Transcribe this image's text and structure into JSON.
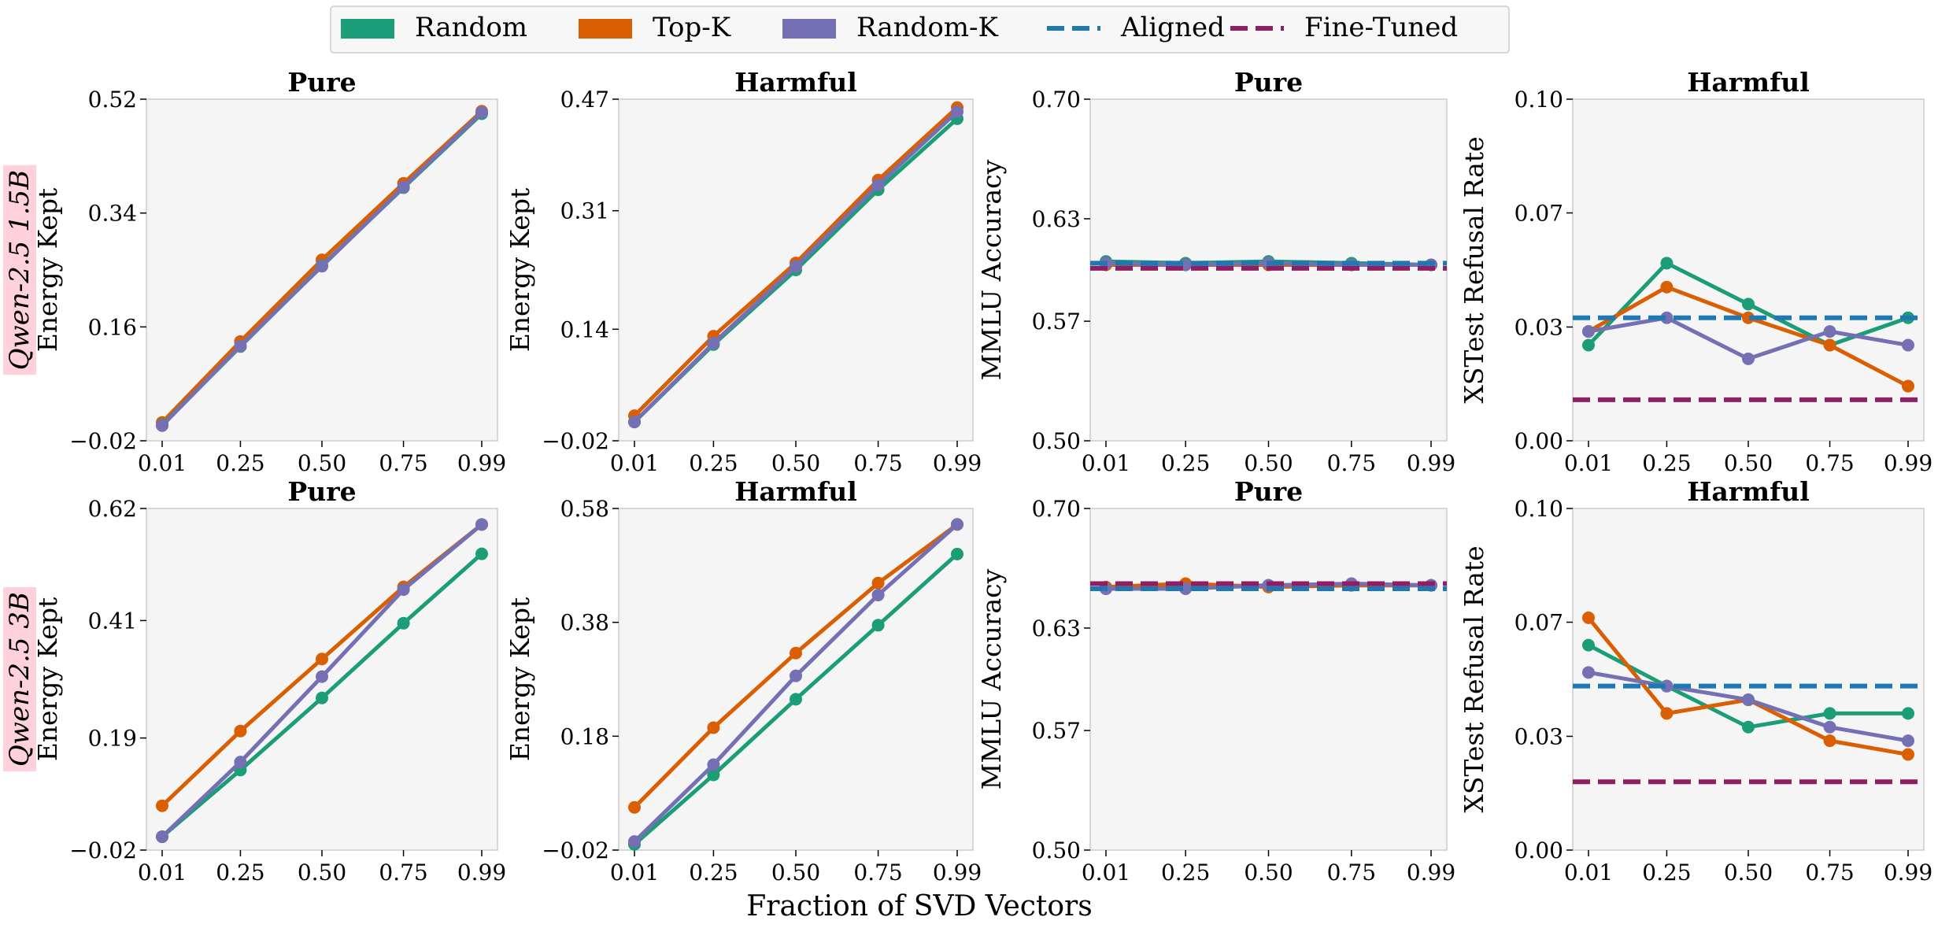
{
  "colors": {
    "random": "#1b9e77",
    "topk": "#d95f02",
    "randomk": "#7570b3",
    "aligned": "#1f77b4",
    "finetuned": "#8e1f63",
    "plot_bg": "#f5f5f5",
    "row_label_bg": "#ffd1dc"
  },
  "legend": [
    {
      "label": "Random",
      "kind": "patch",
      "color_key": "random"
    },
    {
      "label": "Top-K",
      "kind": "patch",
      "color_key": "topk"
    },
    {
      "label": "Random-K",
      "kind": "patch",
      "color_key": "randomk"
    },
    {
      "label": "Aligned",
      "kind": "dashed",
      "color_key": "aligned"
    },
    {
      "label": "Fine-Tuned",
      "kind": "dashed",
      "color_key": "finetuned"
    }
  ],
  "xlabel": "Fraction of SVD Vectors",
  "row_labels": [
    "Qwen-2.5 1.5B",
    "Qwen-2.5 3B"
  ],
  "chart_data": [
    {
      "type": "line",
      "title": "Pure",
      "ylabel": "Energy Kept",
      "x": [
        0.01,
        0.25,
        0.5,
        0.75,
        0.99
      ],
      "xticks": [
        "0.01",
        "0.25",
        "0.50",
        "0.75",
        "0.99"
      ],
      "ylim": [
        -0.02,
        0.52
      ],
      "yticks": [
        "−0.02",
        "0.16",
        "0.34",
        "0.52"
      ],
      "ytick_values": [
        -0.02,
        0.16,
        0.34,
        0.52
      ],
      "series": [
        {
          "name": "Top-K",
          "color_key": "topk",
          "values": [
            0.009,
            0.137,
            0.266,
            0.387,
            0.501
          ]
        },
        {
          "name": "Random",
          "color_key": "random",
          "values": [
            0.005,
            0.129,
            0.257,
            0.38,
            0.497
          ]
        },
        {
          "name": "Random-K",
          "color_key": "randomk",
          "values": [
            0.004,
            0.13,
            0.256,
            0.381,
            0.499
          ]
        }
      ],
      "hlines": []
    },
    {
      "type": "line",
      "title": "Harmful",
      "ylabel": "Energy Kept",
      "x": [
        0.01,
        0.25,
        0.5,
        0.75,
        0.99
      ],
      "xticks": [
        "0.01",
        "0.25",
        "0.50",
        "0.75",
        "0.99"
      ],
      "ylim": [
        -0.02,
        0.47
      ],
      "yticks": [
        "−0.02",
        "0.14",
        "0.31",
        "0.47"
      ],
      "ytick_values": [
        -0.02,
        0.14,
        0.31,
        0.47
      ],
      "series": [
        {
          "name": "Top-K",
          "color_key": "topk",
          "values": [
            0.016,
            0.13,
            0.235,
            0.354,
            0.458
          ]
        },
        {
          "name": "Random",
          "color_key": "random",
          "values": [
            0.007,
            0.118,
            0.225,
            0.34,
            0.442
          ]
        },
        {
          "name": "Random-K",
          "color_key": "randomk",
          "values": [
            0.007,
            0.12,
            0.23,
            0.347,
            0.452
          ]
        }
      ],
      "hlines": []
    },
    {
      "type": "line",
      "title": "Pure",
      "ylabel": "MMLU Accuracy",
      "x": [
        0.01,
        0.25,
        0.5,
        0.75,
        0.99
      ],
      "xticks": [
        "0.01",
        "0.25",
        "0.50",
        "0.75",
        "0.99"
      ],
      "ylim": [
        0.5,
        0.7
      ],
      "yticks": [
        "0.50",
        "0.57",
        "0.63",
        "0.70"
      ],
      "ytick_values": [
        0.5,
        0.57,
        0.63,
        0.7
      ],
      "series": [
        {
          "name": "Random",
          "color_key": "random",
          "values": [
            0.605,
            0.604,
            0.605,
            0.604,
            0.603
          ]
        },
        {
          "name": "Top-K",
          "color_key": "topk",
          "values": [
            0.603,
            0.603,
            0.603,
            0.603,
            0.603
          ]
        },
        {
          "name": "Random-K",
          "color_key": "randomk",
          "values": [
            0.604,
            0.603,
            0.604,
            0.603,
            0.603
          ]
        }
      ],
      "hlines": [
        {
          "name": "Aligned",
          "color_key": "aligned",
          "value": 0.604
        },
        {
          "name": "Fine-Tuned",
          "color_key": "finetuned",
          "value": 0.601
        }
      ]
    },
    {
      "type": "line",
      "title": "Harmful",
      "ylabel": "XSTest Refusal Rate",
      "x": [
        0.01,
        0.25,
        0.5,
        0.75,
        0.99
      ],
      "xticks": [
        "0.01",
        "0.25",
        "0.50",
        "0.75",
        "0.99"
      ],
      "ylim": [
        0.0,
        0.1
      ],
      "yticks": [
        "0.00",
        "0.03",
        "0.07",
        "0.10"
      ],
      "ytick_values": [
        0.0,
        0.0333,
        0.0667,
        0.1
      ],
      "series": [
        {
          "name": "Random",
          "color_key": "random",
          "values": [
            0.028,
            0.052,
            0.04,
            0.028,
            0.036
          ]
        },
        {
          "name": "Top-K",
          "color_key": "topk",
          "values": [
            0.032,
            0.045,
            0.036,
            0.028,
            0.016
          ]
        },
        {
          "name": "Random-K",
          "color_key": "randomk",
          "values": [
            0.032,
            0.036,
            0.024,
            0.032,
            0.028
          ]
        }
      ],
      "hlines": [
        {
          "name": "Aligned",
          "color_key": "aligned",
          "value": 0.036
        },
        {
          "name": "Fine-Tuned",
          "color_key": "finetuned",
          "value": 0.012
        }
      ]
    },
    {
      "type": "line",
      "title": "Pure",
      "ylabel": "Energy Kept",
      "x": [
        0.01,
        0.25,
        0.5,
        0.75,
        0.99
      ],
      "xticks": [
        "0.01",
        "0.25",
        "0.50",
        "0.75",
        "0.99"
      ],
      "ylim": [
        -0.02,
        0.62
      ],
      "yticks": [
        "−0.02",
        "0.19",
        "0.41",
        "0.62"
      ],
      "ytick_values": [
        -0.02,
        0.19,
        0.41,
        0.62
      ],
      "series": [
        {
          "name": "Random",
          "color_key": "random",
          "values": [
            0.005,
            0.13,
            0.265,
            0.405,
            0.535
          ]
        },
        {
          "name": "Top-K",
          "color_key": "topk",
          "values": [
            0.063,
            0.203,
            0.338,
            0.473,
            0.59
          ]
        },
        {
          "name": "Random-K",
          "color_key": "randomk",
          "values": [
            0.005,
            0.145,
            0.305,
            0.468,
            0.59
          ]
        }
      ],
      "hlines": []
    },
    {
      "type": "line",
      "title": "Harmful",
      "ylabel": "Energy Kept",
      "x": [
        0.01,
        0.25,
        0.5,
        0.75,
        0.99
      ],
      "xticks": [
        "0.01",
        "0.25",
        "0.50",
        "0.75",
        "0.99"
      ],
      "ylim": [
        -0.02,
        0.58
      ],
      "yticks": [
        "−0.02",
        "0.18",
        "0.38",
        "0.58"
      ],
      "ytick_values": [
        -0.02,
        0.18,
        0.38,
        0.58
      ],
      "series": [
        {
          "name": "Random",
          "color_key": "random",
          "values": [
            -0.01,
            0.112,
            0.245,
            0.375,
            0.5
          ]
        },
        {
          "name": "Top-K",
          "color_key": "topk",
          "values": [
            0.055,
            0.195,
            0.326,
            0.449,
            0.552
          ]
        },
        {
          "name": "Random-K",
          "color_key": "randomk",
          "values": [
            -0.005,
            0.13,
            0.286,
            0.428,
            0.552
          ]
        }
      ],
      "hlines": []
    },
    {
      "type": "line",
      "title": "Pure",
      "ylabel": "MMLU Accuracy",
      "x": [
        0.01,
        0.25,
        0.5,
        0.75,
        0.99
      ],
      "xticks": [
        "0.01",
        "0.25",
        "0.50",
        "0.75",
        "0.99"
      ],
      "ylim": [
        0.5,
        0.7
      ],
      "yticks": [
        "0.50",
        "0.57",
        "0.63",
        "0.70"
      ],
      "ytick_values": [
        0.5,
        0.57,
        0.63,
        0.7
      ],
      "series": [
        {
          "name": "Random",
          "color_key": "random",
          "values": [
            0.653,
            0.654,
            0.655,
            0.655,
            0.655
          ]
        },
        {
          "name": "Top-K",
          "color_key": "topk",
          "values": [
            0.654,
            0.656,
            0.654,
            0.655,
            0.655
          ]
        },
        {
          "name": "Random-K",
          "color_key": "randomk",
          "values": [
            0.653,
            0.653,
            0.655,
            0.656,
            0.655
          ]
        }
      ],
      "hlines": [
        {
          "name": "Aligned",
          "color_key": "aligned",
          "value": 0.653
        },
        {
          "name": "Fine-Tuned",
          "color_key": "finetuned",
          "value": 0.656
        }
      ]
    },
    {
      "type": "line",
      "title": "Harmful",
      "ylabel": "XSTest Refusal Rate",
      "x": [
        0.01,
        0.25,
        0.5,
        0.75,
        0.99
      ],
      "xticks": [
        "0.01",
        "0.25",
        "0.50",
        "0.75",
        "0.99"
      ],
      "ylim": [
        0.0,
        0.1
      ],
      "yticks": [
        "0.00",
        "0.03",
        "0.07",
        "0.10"
      ],
      "ytick_values": [
        0.0,
        0.0333,
        0.0667,
        0.1
      ],
      "series": [
        {
          "name": "Random",
          "color_key": "random",
          "values": [
            0.06,
            0.048,
            0.036,
            0.04,
            0.04
          ]
        },
        {
          "name": "Top-K",
          "color_key": "topk",
          "values": [
            0.068,
            0.04,
            0.044,
            0.032,
            0.028
          ]
        },
        {
          "name": "Random-K",
          "color_key": "randomk",
          "values": [
            0.052,
            0.048,
            0.044,
            0.036,
            0.032
          ]
        }
      ],
      "hlines": [
        {
          "name": "Aligned",
          "color_key": "aligned",
          "value": 0.048
        },
        {
          "name": "Fine-Tuned",
          "color_key": "finetuned",
          "value": 0.02
        }
      ]
    }
  ]
}
